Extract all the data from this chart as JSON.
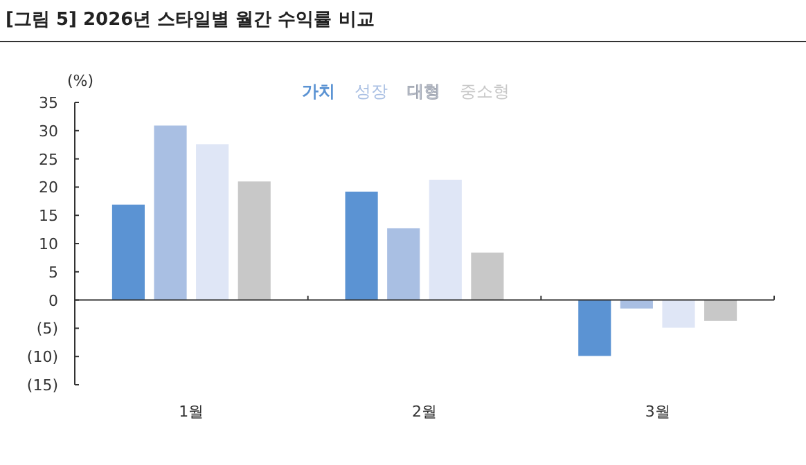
{
  "chart_data": {
    "type": "bar",
    "title": "[그림 5]  2026년 스타일별 월간 수익률 비교",
    "ylabel": "(%)",
    "categories": [
      "1월",
      "2월",
      "3월"
    ],
    "series": [
      {
        "name": "가치",
        "color": "#5b93d3",
        "values": [
          16.9,
          19.2,
          -9.9
        ]
      },
      {
        "name": "성장",
        "color": "#a9bfe3",
        "values": [
          30.9,
          12.7,
          -1.5
        ]
      },
      {
        "name": "대형",
        "color": "#dfe6f6",
        "values": [
          27.6,
          21.3,
          -4.9
        ]
      },
      {
        "name": "중소형",
        "color": "#c8c8c8",
        "values": [
          21.0,
          8.4,
          -3.7
        ]
      }
    ],
    "ylim": [
      -15,
      35
    ],
    "yticks": [
      {
        "value": -15,
        "label": "(15)"
      },
      {
        "value": -10,
        "label": "(10)"
      },
      {
        "value": -5,
        "label": "(5)"
      },
      0,
      5,
      10,
      15,
      20,
      25,
      30,
      35
    ],
    "legend": "top"
  }
}
